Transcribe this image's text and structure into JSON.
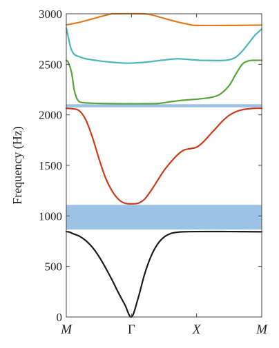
{
  "chart_data": {
    "type": "line",
    "title": "",
    "xlabel": "",
    "ylabel": "Frequency (Hz)",
    "ylim": [
      0,
      3000
    ],
    "xlim": [
      0,
      3
    ],
    "grid": false,
    "y_ticks": [
      "0",
      "500",
      "1000",
      "1500",
      "2000",
      "2500",
      "3000"
    ],
    "x_ticks": [
      {
        "label": "M",
        "x": 0,
        "italic": true
      },
      {
        "label": "Γ",
        "x": 1,
        "italic": false
      },
      {
        "label": "X",
        "x": 2,
        "italic": true
      },
      {
        "label": "M",
        "x": 3,
        "italic": true
      }
    ],
    "bandgaps": [
      {
        "from": 865,
        "to": 1110,
        "color": "#9cc3e5"
      },
      {
        "from": 2075,
        "to": 2105,
        "color": "#9cc3e5"
      }
    ],
    "series": [
      {
        "color": "#1a1a1a",
        "x": [
          0,
          0.05,
          0.1,
          0.2,
          0.3,
          0.4,
          0.5,
          0.6,
          0.7,
          0.8,
          0.9,
          1.0,
          1.1,
          1.2,
          1.3,
          1.4,
          1.5,
          1.6,
          1.7,
          1.8,
          2.0,
          2.5,
          3.0
        ],
        "y": [
          845,
          840,
          825,
          800,
          755,
          690,
          600,
          490,
          370,
          240,
          120,
          0,
          180,
          420,
          600,
          720,
          790,
          825,
          838,
          843,
          845,
          845,
          843
        ]
      },
      {
        "color": "#cc3a1a",
        "x": [
          0,
          0.1,
          0.2,
          0.3,
          0.4,
          0.5,
          0.6,
          0.7,
          0.8,
          0.9,
          1.0,
          1.1,
          1.2,
          1.3,
          1.4,
          1.5,
          1.6,
          1.7,
          1.8,
          1.9,
          2.0,
          2.1,
          2.2,
          2.3,
          2.4,
          2.5,
          2.6,
          2.7,
          2.8,
          2.9,
          3.0
        ],
        "y": [
          2065,
          2060,
          2040,
          1950,
          1780,
          1570,
          1380,
          1250,
          1165,
          1125,
          1120,
          1125,
          1165,
          1250,
          1350,
          1450,
          1530,
          1600,
          1650,
          1665,
          1680,
          1730,
          1800,
          1870,
          1940,
          1995,
          2030,
          2050,
          2060,
          2065,
          2065
        ]
      },
      {
        "color": "#5aa33a",
        "x": [
          0,
          0.03,
          0.08,
          0.12,
          0.16,
          0.2,
          0.25,
          0.3,
          0.4,
          0.6,
          0.8,
          1.0,
          1.2,
          1.4,
          1.5,
          1.6,
          1.7,
          1.8,
          2.0,
          2.2,
          2.35,
          2.5,
          2.6,
          2.7,
          2.8,
          2.9,
          3.0
        ],
        "y": [
          2540,
          2520,
          2420,
          2250,
          2165,
          2130,
          2122,
          2118,
          2115,
          2112,
          2110,
          2110,
          2110,
          2112,
          2120,
          2130,
          2138,
          2145,
          2155,
          2170,
          2200,
          2290,
          2400,
          2500,
          2535,
          2540,
          2540
        ]
      },
      {
        "color": "#4db4b8",
        "x": [
          0,
          0.03,
          0.07,
          0.12,
          0.2,
          0.3,
          0.5,
          0.7,
          0.9,
          1.0,
          1.2,
          1.4,
          1.6,
          1.7,
          1.8,
          2.0,
          2.2,
          2.4,
          2.5,
          2.6,
          2.7,
          2.8,
          2.9,
          3.0
        ],
        "y": [
          2860,
          2770,
          2660,
          2600,
          2575,
          2555,
          2535,
          2520,
          2512,
          2512,
          2520,
          2535,
          2550,
          2555,
          2552,
          2542,
          2538,
          2538,
          2545,
          2570,
          2630,
          2710,
          2790,
          2850
        ]
      },
      {
        "color": "#e07a1f",
        "x": [
          0,
          0.2,
          0.4,
          0.6,
          0.7,
          0.75,
          1.15,
          1.3,
          1.5,
          1.7,
          1.9,
          2.0,
          2.5,
          3.0
        ],
        "y": [
          2890,
          2915,
          2950,
          2985,
          3000,
          3000,
          3000,
          2990,
          2955,
          2920,
          2892,
          2885,
          2885,
          2888
        ]
      }
    ]
  }
}
